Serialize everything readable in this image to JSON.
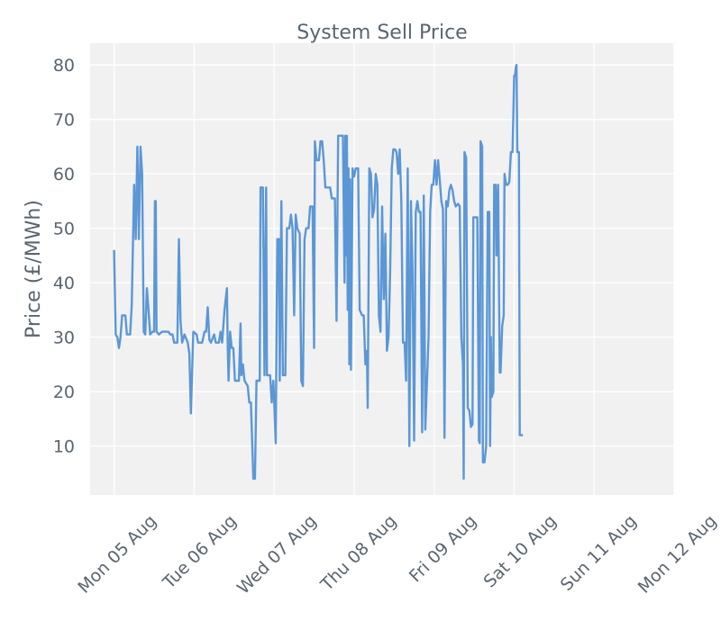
{
  "chart_data": {
    "type": "line",
    "title": "System Sell Price",
    "xlabel": "",
    "ylabel": "Price (£/MWh)",
    "xlim": [
      -0.3,
      7.0
    ],
    "ylim": [
      1,
      84
    ],
    "grid": true,
    "x_ticks": [
      {
        "x": 0,
        "label": "Mon 05 Aug"
      },
      {
        "x": 1,
        "label": "Tue 06 Aug"
      },
      {
        "x": 2,
        "label": "Wed 07 Aug"
      },
      {
        "x": 3,
        "label": "Thu 08 Aug"
      },
      {
        "x": 4,
        "label": "Fri 09 Aug"
      },
      {
        "x": 5,
        "label": "Sat 10 Aug"
      },
      {
        "x": 6,
        "label": "Sun 11 Aug"
      },
      {
        "x": 7,
        "label": "Mon 12 Aug"
      }
    ],
    "y_ticks": [
      10,
      20,
      30,
      40,
      50,
      60,
      70,
      80
    ],
    "series": [
      {
        "name": "System Sell Price",
        "color": "#5b97d6",
        "points": [
          [
            0.0,
            46
          ],
          [
            0.02,
            30.5
          ],
          [
            0.04,
            30
          ],
          [
            0.06,
            28
          ],
          [
            0.08,
            30
          ],
          [
            0.1,
            34
          ],
          [
            0.14,
            34
          ],
          [
            0.16,
            30.5
          ],
          [
            0.2,
            30.5
          ],
          [
            0.22,
            36
          ],
          [
            0.25,
            58
          ],
          [
            0.27,
            48
          ],
          [
            0.29,
            65
          ],
          [
            0.31,
            48
          ],
          [
            0.33,
            65
          ],
          [
            0.35,
            60
          ],
          [
            0.37,
            31
          ],
          [
            0.39,
            30.5
          ],
          [
            0.41,
            39
          ],
          [
            0.43,
            35
          ],
          [
            0.45,
            30.5
          ],
          [
            0.48,
            31
          ],
          [
            0.5,
            31
          ],
          [
            0.51,
            55
          ],
          [
            0.52,
            55
          ],
          [
            0.53,
            31
          ],
          [
            0.56,
            30.5
          ],
          [
            0.6,
            31
          ],
          [
            0.64,
            31
          ],
          [
            0.68,
            31
          ],
          [
            0.7,
            30.5
          ],
          [
            0.73,
            30.5
          ],
          [
            0.75,
            29
          ],
          [
            0.79,
            29
          ],
          [
            0.81,
            48
          ],
          [
            0.83,
            33
          ],
          [
            0.85,
            29
          ],
          [
            0.88,
            30.5
          ],
          [
            0.92,
            29
          ],
          [
            0.94,
            27
          ],
          [
            0.96,
            16
          ],
          [
            0.99,
            31
          ],
          [
            1.03,
            30.5
          ],
          [
            1.05,
            29
          ],
          [
            1.1,
            29
          ],
          [
            1.13,
            31
          ],
          [
            1.15,
            31
          ],
          [
            1.17,
            35.5
          ],
          [
            1.19,
            29.5
          ],
          [
            1.21,
            29
          ],
          [
            1.25,
            30.5
          ],
          [
            1.27,
            29
          ],
          [
            1.31,
            29
          ],
          [
            1.33,
            31
          ],
          [
            1.35,
            29
          ],
          [
            1.38,
            35
          ],
          [
            1.41,
            39
          ],
          [
            1.42,
            28
          ],
          [
            1.43,
            22
          ],
          [
            1.45,
            31
          ],
          [
            1.47,
            28
          ],
          [
            1.49,
            28
          ],
          [
            1.51,
            22
          ],
          [
            1.53,
            22
          ],
          [
            1.56,
            22
          ],
          [
            1.58,
            32.5
          ],
          [
            1.59,
            23
          ],
          [
            1.61,
            25
          ],
          [
            1.63,
            22
          ],
          [
            1.65,
            21.5
          ],
          [
            1.67,
            21
          ],
          [
            1.69,
            18
          ],
          [
            1.71,
            18
          ],
          [
            1.74,
            4
          ],
          [
            1.76,
            4
          ],
          [
            1.78,
            22
          ],
          [
            1.82,
            22
          ],
          [
            1.83,
            57.5
          ],
          [
            1.86,
            57.5
          ],
          [
            1.88,
            23
          ],
          [
            1.9,
            57.5
          ],
          [
            1.91,
            23
          ],
          [
            1.95,
            23
          ],
          [
            1.97,
            18
          ],
          [
            1.99,
            22
          ],
          [
            2.0,
            18.5
          ],
          [
            2.02,
            10.5
          ],
          [
            2.04,
            48
          ],
          [
            2.06,
            48
          ],
          [
            2.07,
            22
          ],
          [
            2.09,
            55
          ],
          [
            2.11,
            23
          ],
          [
            2.14,
            23
          ],
          [
            2.16,
            50
          ],
          [
            2.19,
            50
          ],
          [
            2.21,
            52.5
          ],
          [
            2.23,
            50
          ],
          [
            2.25,
            34
          ],
          [
            2.27,
            52.5
          ],
          [
            2.29,
            50
          ],
          [
            2.32,
            49
          ],
          [
            2.34,
            22
          ],
          [
            2.36,
            21
          ],
          [
            2.38,
            48
          ],
          [
            2.4,
            50
          ],
          [
            2.43,
            50
          ],
          [
            2.45,
            54
          ],
          [
            2.48,
            54
          ],
          [
            2.5,
            28
          ],
          [
            2.51,
            66
          ],
          [
            2.53,
            62.5
          ],
          [
            2.56,
            62.5
          ],
          [
            2.58,
            66
          ],
          [
            2.6,
            66
          ],
          [
            2.62,
            62.5
          ],
          [
            2.64,
            57.5
          ],
          [
            2.67,
            57.5
          ],
          [
            2.7,
            57.5
          ],
          [
            2.72,
            55.5
          ],
          [
            2.76,
            55.5
          ],
          [
            2.78,
            33
          ],
          [
            2.8,
            67
          ],
          [
            2.83,
            67
          ],
          [
            2.86,
            67
          ],
          [
            2.88,
            40
          ],
          [
            2.89,
            67
          ],
          [
            2.9,
            45
          ],
          [
            2.91,
            67
          ],
          [
            2.92,
            35
          ],
          [
            2.93,
            61
          ],
          [
            2.94,
            25
          ],
          [
            2.95,
            59
          ],
          [
            2.96,
            24
          ],
          [
            2.98,
            61
          ],
          [
            3.0,
            59.5
          ],
          [
            3.02,
            61
          ],
          [
            3.05,
            61
          ],
          [
            3.07,
            35
          ],
          [
            3.1,
            34
          ],
          [
            3.12,
            34
          ],
          [
            3.14,
            25
          ],
          [
            3.16,
            27.5
          ],
          [
            3.17,
            17
          ],
          [
            3.19,
            61
          ],
          [
            3.21,
            60
          ],
          [
            3.23,
            52
          ],
          [
            3.25,
            53.5
          ],
          [
            3.27,
            60
          ],
          [
            3.29,
            58
          ],
          [
            3.31,
            34
          ],
          [
            3.33,
            31
          ],
          [
            3.35,
            54
          ],
          [
            3.37,
            37
          ],
          [
            3.39,
            49
          ],
          [
            3.41,
            27.5
          ],
          [
            3.43,
            30
          ],
          [
            3.45,
            42
          ],
          [
            3.47,
            61
          ],
          [
            3.49,
            64.5
          ],
          [
            3.51,
            64.5
          ],
          [
            3.53,
            64
          ],
          [
            3.55,
            60
          ],
          [
            3.57,
            64.5
          ],
          [
            3.59,
            55
          ],
          [
            3.61,
            29
          ],
          [
            3.63,
            29
          ],
          [
            3.65,
            22
          ],
          [
            3.67,
            61
          ],
          [
            3.69,
            10
          ],
          [
            3.71,
            55
          ],
          [
            3.73,
            42
          ],
          [
            3.75,
            11
          ],
          [
            3.77,
            53
          ],
          [
            3.79,
            55
          ],
          [
            3.81,
            53
          ],
          [
            3.83,
            53
          ],
          [
            3.85,
            12.5
          ],
          [
            3.87,
            56
          ],
          [
            3.89,
            13
          ],
          [
            3.93,
            30
          ],
          [
            3.95,
            53
          ],
          [
            3.97,
            58
          ],
          [
            3.99,
            58
          ],
          [
            4.01,
            62.5
          ],
          [
            4.03,
            58
          ],
          [
            4.05,
            62.5
          ],
          [
            4.07,
            59
          ],
          [
            4.09,
            55
          ],
          [
            4.11,
            53.5
          ],
          [
            4.13,
            11.5
          ],
          [
            4.15,
            55
          ],
          [
            4.17,
            54
          ],
          [
            4.19,
            57
          ],
          [
            4.21,
            58
          ],
          [
            4.23,
            57
          ],
          [
            4.25,
            55
          ],
          [
            4.27,
            54
          ],
          [
            4.3,
            54.5
          ],
          [
            4.32,
            54
          ],
          [
            4.34,
            30
          ],
          [
            4.36,
            25
          ],
          [
            4.37,
            4
          ],
          [
            4.38,
            64
          ],
          [
            4.4,
            63
          ],
          [
            4.42,
            17
          ],
          [
            4.44,
            16.5
          ],
          [
            4.46,
            13.5
          ],
          [
            4.48,
            14
          ],
          [
            4.49,
            52
          ],
          [
            4.52,
            52
          ],
          [
            4.54,
            52
          ],
          [
            4.56,
            11
          ],
          [
            4.57,
            10.5
          ],
          [
            4.58,
            66
          ],
          [
            4.6,
            65
          ],
          [
            4.61,
            7
          ],
          [
            4.63,
            7
          ],
          [
            4.65,
            10
          ],
          [
            4.67,
            53
          ],
          [
            4.69,
            53
          ],
          [
            4.7,
            10
          ],
          [
            4.71,
            30
          ],
          [
            4.72,
            19
          ],
          [
            4.74,
            20
          ],
          [
            4.75,
            58
          ],
          [
            4.77,
            58
          ],
          [
            4.78,
            45
          ],
          [
            4.8,
            58
          ],
          [
            4.82,
            23.5
          ],
          [
            4.83,
            23.5
          ],
          [
            4.85,
            32
          ],
          [
            4.87,
            34
          ],
          [
            4.88,
            60
          ],
          [
            4.9,
            58
          ],
          [
            4.92,
            58
          ],
          [
            4.94,
            58.5
          ],
          [
            4.96,
            64
          ],
          [
            4.98,
            64
          ],
          [
            5.0,
            78
          ],
          [
            5.01,
            78
          ],
          [
            5.02,
            79.5
          ],
          [
            5.03,
            80
          ],
          [
            5.04,
            64
          ],
          [
            5.06,
            64
          ],
          [
            5.07,
            12
          ],
          [
            5.11,
            12
          ]
        ]
      }
    ]
  }
}
